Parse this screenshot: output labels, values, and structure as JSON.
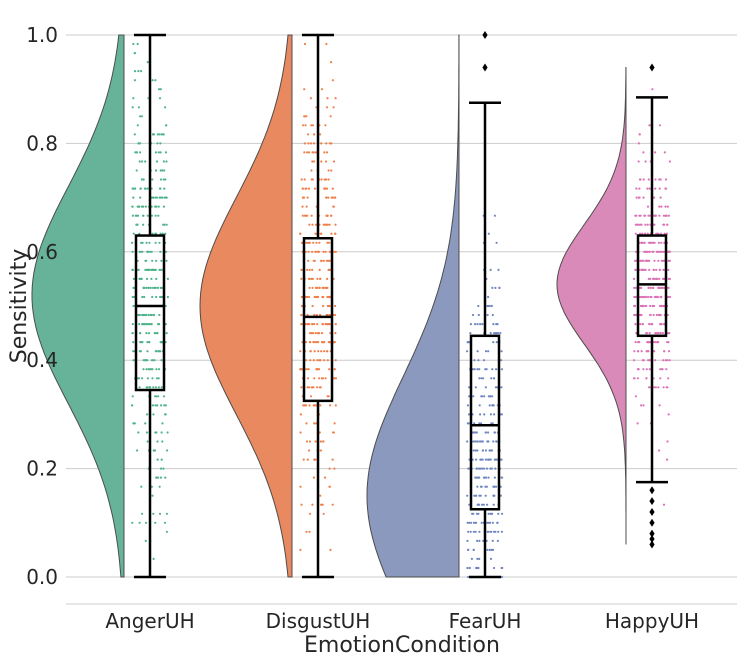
{
  "chart_data": {
    "type": "raincloud",
    "title": "",
    "xlabel": "EmotionCondition",
    "ylabel": "Sensitivity",
    "ylim": [
      -0.05,
      1.03
    ],
    "yticks": [
      0.0,
      0.2,
      0.4,
      0.6,
      0.8,
      1.0
    ],
    "ytick_labels": [
      "0.0",
      "0.2",
      "0.4",
      "0.6",
      "0.8",
      "1.0"
    ],
    "grid": "horizontal",
    "categories": [
      "AngerUH",
      "DisgustUH",
      "FearUH",
      "HappyUH"
    ],
    "colors": [
      "#66b39a",
      "#e8895f",
      "#8a99bd",
      "#d98ab9"
    ],
    "point_colors": [
      "#4fb38a",
      "#f07f4a",
      "#7086c0",
      "#dc73b7"
    ],
    "series": [
      {
        "name": "AngerUH",
        "box": {
          "whisker_low": 0.0,
          "q1": 0.345,
          "median": 0.5,
          "q3": 0.63,
          "whisker_high": 1.0
        },
        "outliers": [],
        "density_range": [
          0.0,
          1.0
        ],
        "density_center": 0.52,
        "density_spread": 0.2
      },
      {
        "name": "DisgustUH",
        "box": {
          "whisker_low": 0.0,
          "q1": 0.325,
          "median": 0.48,
          "q3": 0.625,
          "whisker_high": 1.0
        },
        "outliers": [],
        "density_range": [
          0.0,
          1.0
        ],
        "density_center": 0.5,
        "density_spread": 0.2
      },
      {
        "name": "FearUH",
        "box": {
          "whisker_low": 0.0,
          "q1": 0.125,
          "median": 0.28,
          "q3": 0.445,
          "whisker_high": 0.875
        },
        "outliers": [
          0.94,
          1.0
        ],
        "density_range": [
          0.0,
          1.0
        ],
        "density_center": 0.15,
        "density_spread": 0.22
      },
      {
        "name": "HappyUH",
        "box": {
          "whisker_low": 0.175,
          "q1": 0.445,
          "median": 0.54,
          "q3": 0.63,
          "whisker_high": 0.885
        },
        "outliers": [
          0.06,
          0.07,
          0.08,
          0.1,
          0.12,
          0.14,
          0.16,
          0.94
        ],
        "density_range": [
          0.06,
          0.94
        ],
        "density_center": 0.54,
        "density_spread": 0.11
      }
    ]
  }
}
